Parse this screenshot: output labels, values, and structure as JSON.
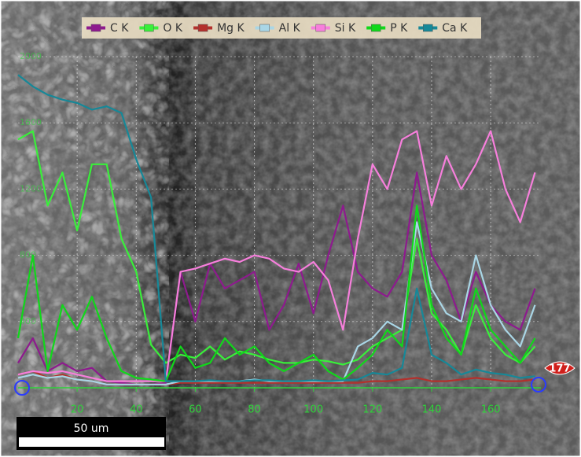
{
  "chart_data": {
    "type": "line",
    "x": [
      0,
      5,
      10,
      15,
      20,
      25,
      30,
      35,
      40,
      45,
      50,
      55,
      60,
      65,
      70,
      75,
      80,
      85,
      90,
      95,
      100,
      105,
      110,
      115,
      120,
      125,
      130,
      135,
      140,
      145,
      150,
      155,
      160,
      165,
      170,
      175
    ],
    "xlim": [
      0,
      177
    ],
    "xticks": [
      20,
      40,
      60,
      80,
      100,
      120,
      140,
      160
    ],
    "ylim": [
      0,
      2000
    ],
    "yticks": [
      400,
      800,
      1200,
      1600,
      2000
    ],
    "grid": true,
    "legend": "top",
    "series": [
      {
        "name": "C K",
        "color": "#8e1a8e",
        "values": [
          150,
          300,
          100,
          150,
          100,
          120,
          40,
          30,
          20,
          20,
          30,
          700,
          400,
          750,
          600,
          650,
          700,
          350,
          500,
          750,
          450,
          800,
          1100,
          700,
          600,
          550,
          700,
          1300,
          800,
          650,
          400,
          700,
          500,
          400,
          350,
          600
        ]
      },
      {
        "name": "O K",
        "color": "#39f03a",
        "values": [
          1500,
          1550,
          1100,
          1300,
          950,
          1350,
          1350,
          900,
          700,
          260,
          150,
          200,
          180,
          250,
          170,
          220,
          200,
          170,
          150,
          150,
          170,
          160,
          140,
          170,
          250,
          300,
          350,
          900,
          450,
          350,
          200,
          500,
          300,
          200,
          150,
          250
        ]
      },
      {
        "name": "Mg K",
        "color": "#b3302c",
        "values": [
          80,
          100,
          60,
          80,
          50,
          40,
          20,
          20,
          20,
          20,
          20,
          30,
          30,
          30,
          30,
          30,
          30,
          30,
          30,
          30,
          30,
          30,
          30,
          30,
          40,
          40,
          50,
          60,
          40,
          40,
          50,
          60,
          50,
          40,
          40,
          50
        ]
      },
      {
        "name": "Al K",
        "color": "#a9d6e6",
        "values": [
          60,
          80,
          60,
          70,
          50,
          40,
          20,
          20,
          20,
          20,
          20,
          40,
          40,
          40,
          40,
          40,
          50,
          40,
          40,
          40,
          40,
          40,
          40,
          250,
          300,
          400,
          350,
          1000,
          600,
          450,
          400,
          800,
          500,
          350,
          250,
          500
        ]
      },
      {
        "name": "Si K",
        "color": "#f77fdc",
        "values": [
          80,
          100,
          90,
          100,
          80,
          60,
          40,
          40,
          40,
          40,
          40,
          700,
          720,
          750,
          780,
          760,
          800,
          780,
          720,
          700,
          760,
          650,
          350,
          900,
          1350,
          1200,
          1500,
          1550,
          1100,
          1400,
          1200,
          1350,
          1550,
          1200,
          1000,
          1300
        ]
      },
      {
        "name": "P K",
        "color": "#10d81a",
        "values": [
          300,
          800,
          100,
          500,
          350,
          550,
          300,
          100,
          60,
          50,
          40,
          250,
          120,
          150,
          300,
          200,
          250,
          150,
          100,
          150,
          200,
          100,
          50,
          120,
          200,
          350,
          250,
          1100,
          500,
          300,
          200,
          600,
          350,
          250,
          150,
          300
        ]
      },
      {
        "name": "Ca K",
        "color": "#168898",
        "values": [
          1890,
          1820,
          1770,
          1740,
          1720,
          1680,
          1700,
          1660,
          1380,
          1150,
          40,
          40,
          40,
          45,
          40,
          40,
          45,
          45,
          40,
          40,
          45,
          40,
          45,
          50,
          90,
          80,
          120,
          600,
          200,
          150,
          80,
          110,
          90,
          80,
          60,
          70
        ]
      }
    ],
    "end_marker": "177",
    "scale_bar": "50 um"
  }
}
